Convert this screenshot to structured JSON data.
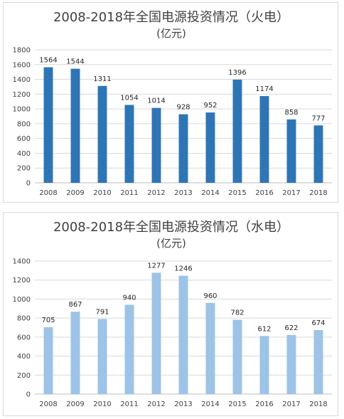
{
  "chart_data": [
    {
      "type": "bar",
      "title": "2008-2018年全国电源投资情况（火电）",
      "unit_label": "(亿元)",
      "categories": [
        "2008",
        "2009",
        "2010",
        "2011",
        "2012",
        "2013",
        "2014",
        "2015",
        "2016",
        "2017",
        "2018"
      ],
      "values": [
        1564,
        1544,
        1311,
        1054,
        1014,
        928,
        952,
        1396,
        1174,
        858,
        777
      ],
      "ylim": [
        0,
        1800
      ],
      "yticks": [
        "0",
        "200",
        "400",
        "600",
        "800",
        "1000",
        "1200",
        "1400",
        "1600",
        "1800"
      ],
      "grid": true,
      "color": "#2e75b6"
    },
    {
      "type": "bar",
      "title": "2008-2018年全国电源投资情况（水电）",
      "unit_label": "(亿元)",
      "categories": [
        "2008",
        "2009",
        "2010",
        "2011",
        "2012",
        "2013",
        "2014",
        "2015",
        "2016",
        "2017",
        "2018"
      ],
      "values": [
        705,
        867,
        791,
        940,
        1277,
        1246,
        960,
        782,
        612,
        622,
        674
      ],
      "ylim": [
        0,
        1400
      ],
      "yticks": [
        "0",
        "200",
        "400",
        "600",
        "800",
        "1000",
        "1200",
        "1400"
      ],
      "grid": true,
      "color": "#9dc3e6"
    }
  ]
}
